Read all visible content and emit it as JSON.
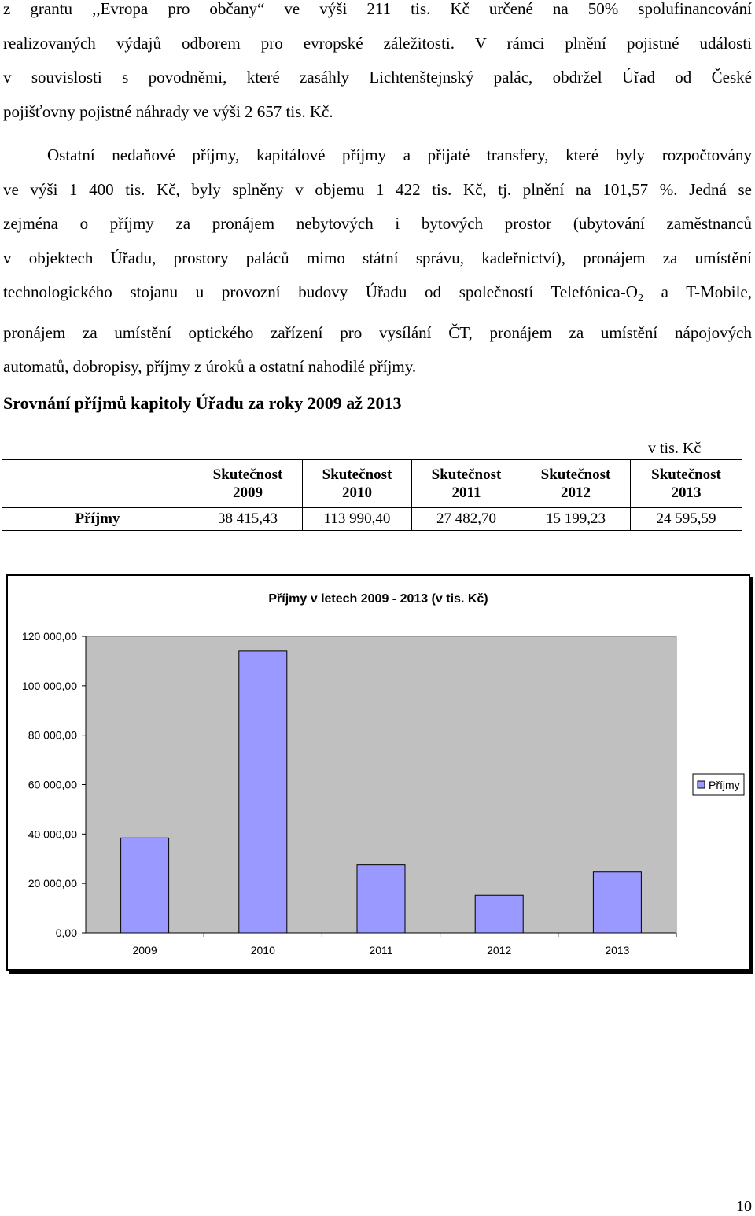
{
  "paragraph1": {
    "lines": [
      "z grantu ,,Evropa pro občany“ ve výši 211 tis. Kč určené na 50% spolufinancování",
      "realizovaných výdajů odborem pro evropské záležitosti. V rámci plnění pojistné události",
      "v souvislosti s povodněmi, které zasáhly Lichtenštejnský palác, obdržel Úřad od České",
      "pojišťovny pojistné náhrady ve výši 2 657 tis. Kč."
    ]
  },
  "paragraph2": {
    "lines": [
      "Ostatní nedaňové příjmy, kapitálové příjmy a přijaté transfery, které byly rozpočtovány",
      "ve výši 1 400 tis. Kč, byly splněny v objemu 1 422 tis. Kč, tj. plnění na 101,57 %. Jedná se",
      "zejména o příjmy za pronájem nebytových i bytových prostor (ubytování zaměstnanců",
      "v objektech Úřadu, prostory paláců mimo státní správu, kadeřnictví), pronájem za umístění",
      "technologického stojanu u provozní budovy Úřadu od společností Telefónica-O",
      "pronájem za umístění optického zařízení pro vysílání ČT, pronájem za umístění nápojových",
      "automatů, dobropisy, příjmy z úroků a ostatní nahodilé příjmy."
    ],
    "subscript": "2",
    "line5_tail": " a T-Mobile,"
  },
  "section_heading": "Srovnání příjmů kapitoly Úřadu za roky 2009 až 2013",
  "table": {
    "unit": "v tis. Kč",
    "headers": [
      [
        "Skutečnost",
        "2009"
      ],
      [
        "Skutečnost",
        "2010"
      ],
      [
        "Skutečnost",
        "2011"
      ],
      [
        "Skutečnost",
        "2012"
      ],
      [
        "Skutečnost",
        "2013"
      ]
    ],
    "row_label": "Příjmy",
    "values": [
      "38 415,43",
      "113 990,40",
      "27 482,70",
      "15 199,23",
      "24 595,59"
    ]
  },
  "chart_data": {
    "type": "bar",
    "title": "Příjmy v letech 2009 - 2013 (v tis. Kč)",
    "categories": [
      "2009",
      "2010",
      "2011",
      "2012",
      "2013"
    ],
    "series": [
      {
        "name": "Příjmy",
        "values": [
          38415.43,
          113990.4,
          27482.7,
          15199.23,
          24595.59
        ]
      }
    ],
    "ylim": [
      0,
      120000
    ],
    "yticks": [
      "0,00",
      "20 000,00",
      "40 000,00",
      "60 000,00",
      "80 000,00",
      "100 000,00",
      "120 000,00"
    ],
    "legend": "right",
    "grid": false,
    "colors": {
      "bar": "#9999ff",
      "plot_bg": "#c0c0c0"
    }
  },
  "page_number": "10"
}
